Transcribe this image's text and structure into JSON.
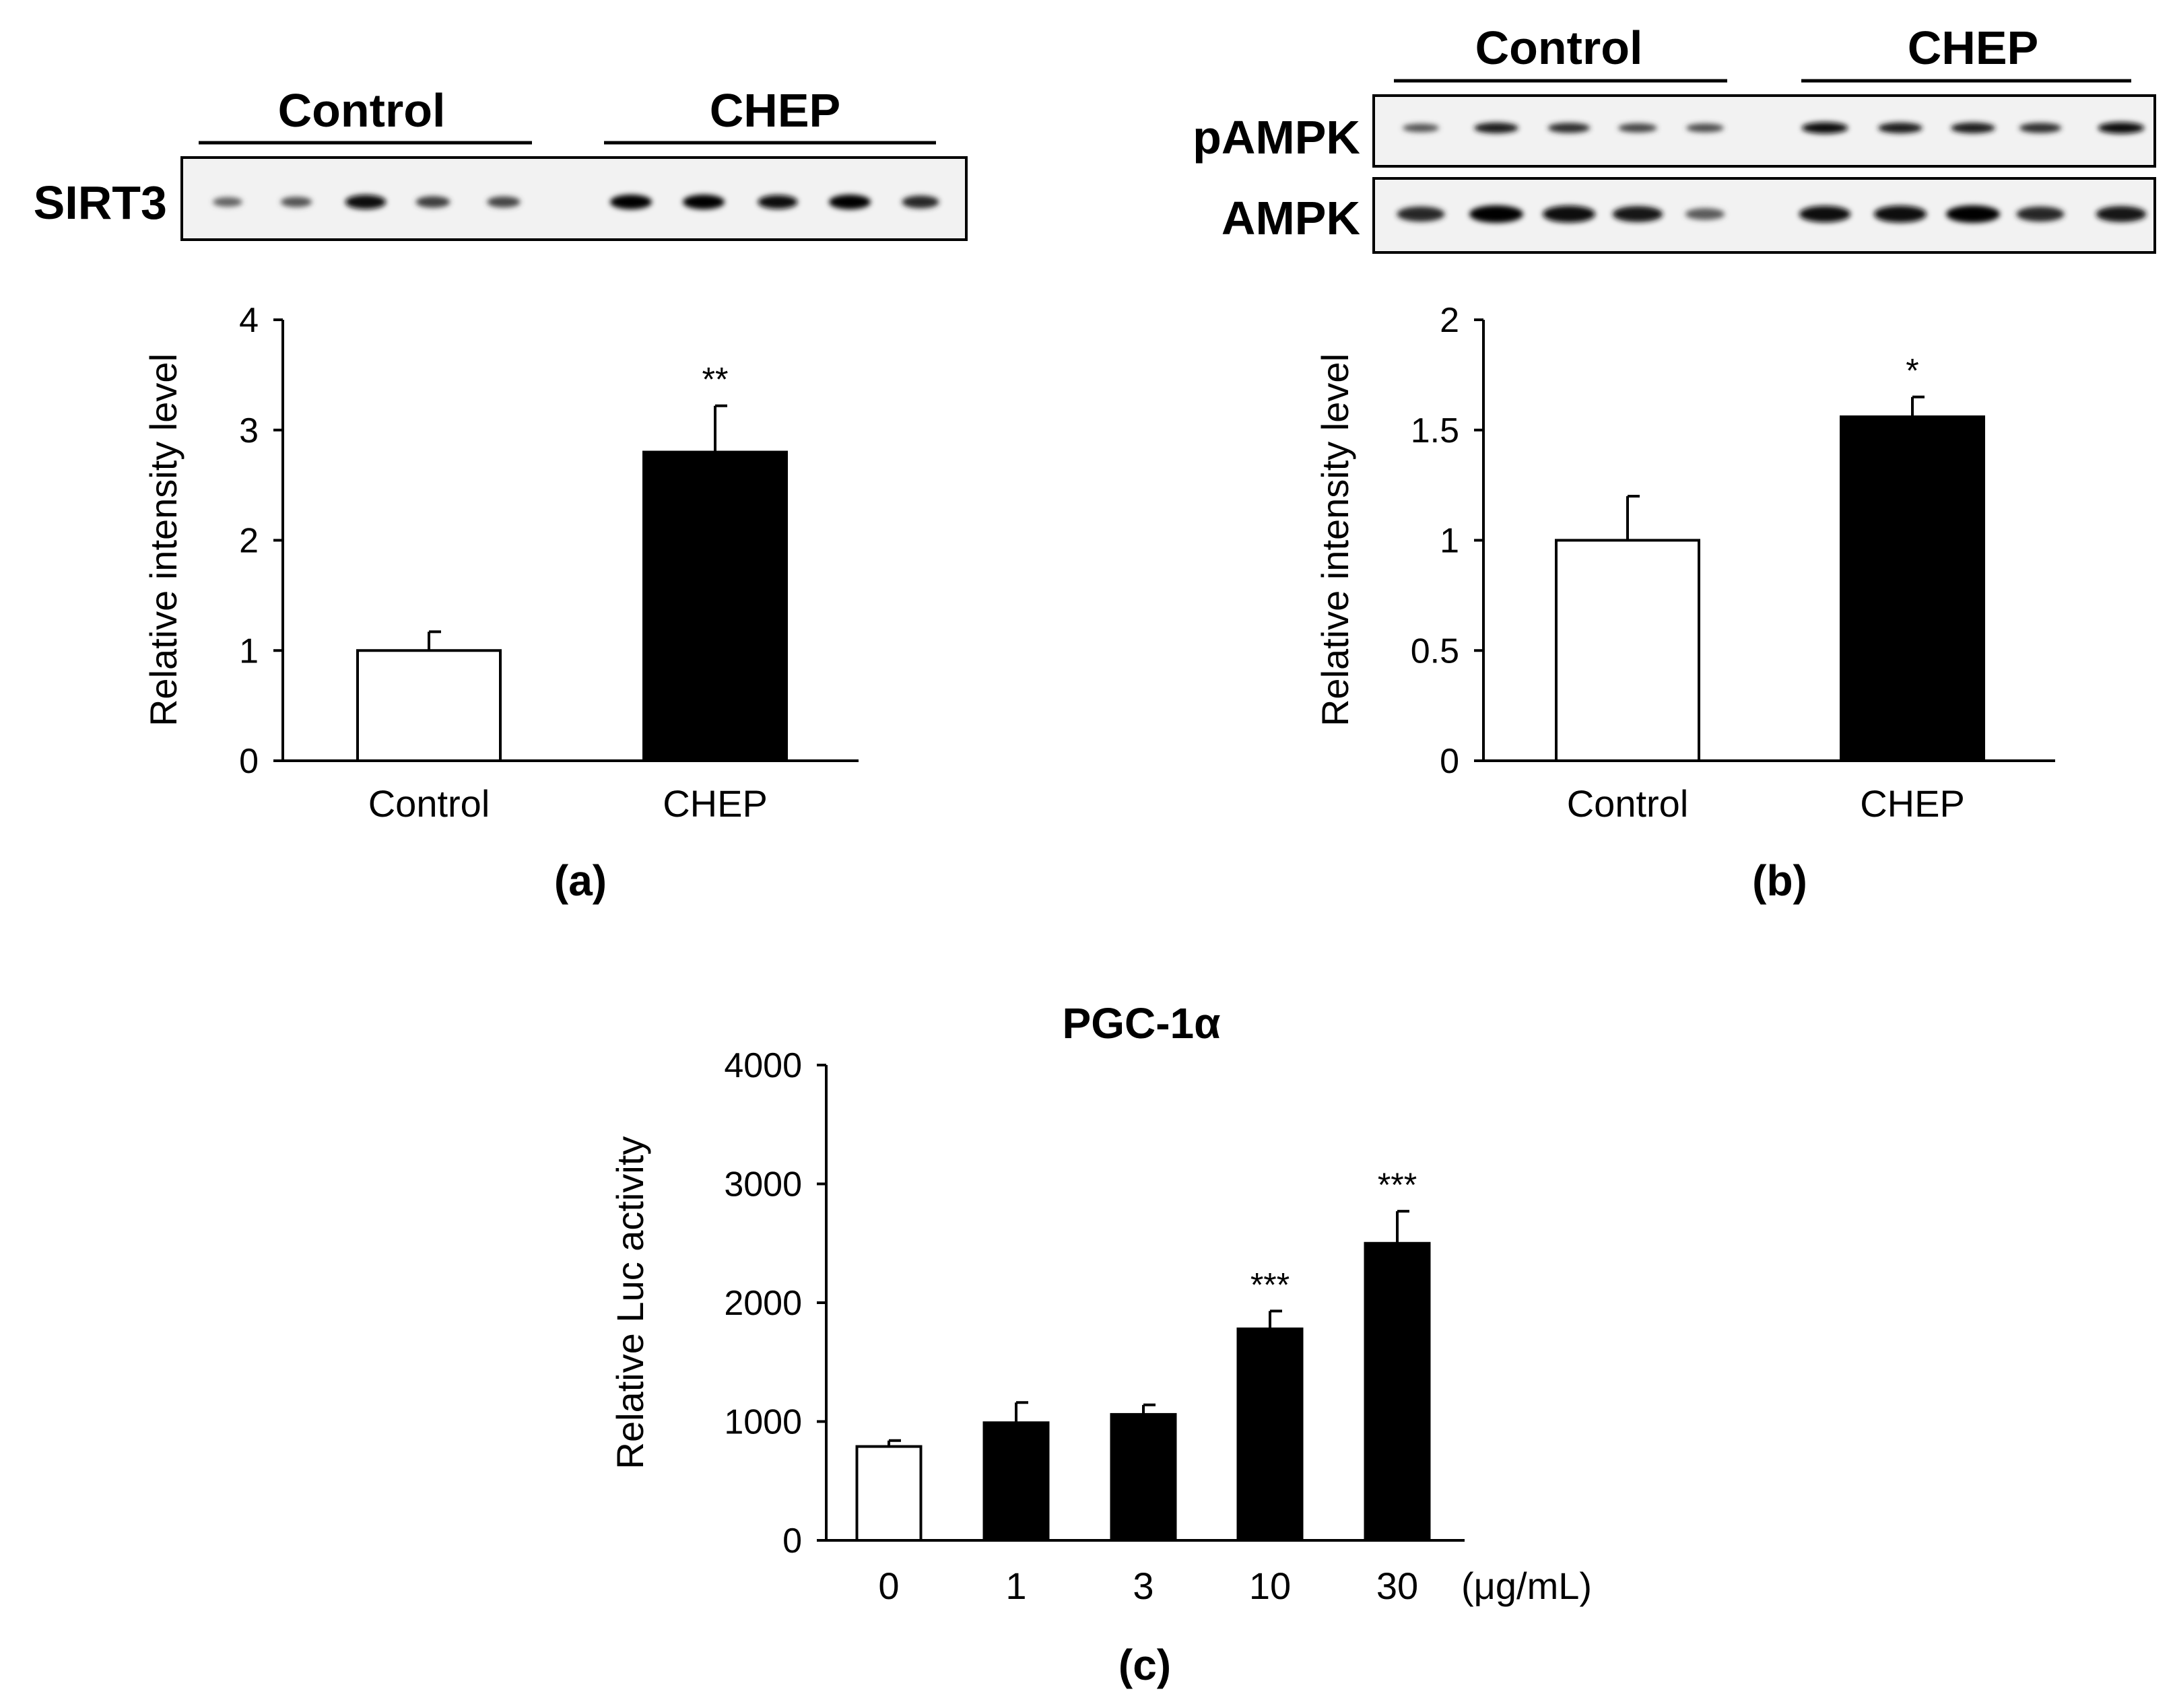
{
  "colors": {
    "ink": "#000000",
    "open_bar": "#ffffff",
    "filled_bar": "#000000",
    "blot_bg": "#f2f2f2"
  },
  "panels": [
    {
      "label": "(a)",
      "blot": {
        "group_labels": [
          "Control",
          "CHEP"
        ],
        "rows": [
          {
            "label": "SIRT3",
            "band_intensity": [
              0.35,
              0.45,
              0.95,
              0.6,
              0.55,
              1.0,
              1.0,
              0.9,
              1.0,
              0.75
            ]
          }
        ]
      }
    },
    {
      "label": "(b)",
      "blot": {
        "group_labels": [
          "Control",
          "CHEP"
        ],
        "rows": [
          {
            "label": "pAMPK",
            "band_intensity": [
              0.45,
              0.8,
              0.7,
              0.55,
              0.5,
              0.9,
              0.8,
              0.8,
              0.7,
              0.9
            ]
          },
          {
            "label": "AMPK",
            "band_intensity": [
              0.75,
              1.0,
              0.95,
              0.85,
              0.4,
              0.9,
              0.95,
              1.0,
              0.75,
              0.85
            ]
          }
        ]
      }
    },
    {
      "label": "(c)"
    }
  ],
  "chart_data": [
    {
      "type": "bar",
      "title": "",
      "categories": [
        "Control",
        "CHEP"
      ],
      "values": [
        1.0,
        2.8
      ],
      "errors": [
        0.17,
        0.42
      ],
      "significance": [
        "",
        "**"
      ],
      "bar_fill": [
        "open",
        "filled"
      ],
      "xlabel": "",
      "ylabel": "Relative intensity level",
      "ylim": [
        0,
        4
      ],
      "yticks": [
        "0",
        "1",
        "2",
        "3",
        "4"
      ],
      "grid": false
    },
    {
      "type": "bar",
      "title": "",
      "categories": [
        "Control",
        "CHEP"
      ],
      "values": [
        1.0,
        1.56
      ],
      "errors": [
        0.2,
        0.09
      ],
      "significance": [
        "",
        "*"
      ],
      "bar_fill": [
        "open",
        "filled"
      ],
      "xlabel": "",
      "ylabel": "Relative intensity level",
      "ylim": [
        0,
        2
      ],
      "yticks": [
        "0",
        "0.5",
        "1",
        "1.5",
        "2"
      ],
      "grid": false
    },
    {
      "type": "bar",
      "title": "PGC-1α",
      "categories": [
        "0",
        "1",
        "3",
        "10",
        "30"
      ],
      "x_unit": "(μg/mL)",
      "values": [
        790,
        990,
        1060,
        1780,
        2500
      ],
      "errors": [
        50,
        170,
        80,
        150,
        270
      ],
      "significance": [
        "",
        "",
        "",
        "***",
        "***"
      ],
      "bar_fill": [
        "open",
        "filled",
        "filled",
        "filled",
        "filled"
      ],
      "xlabel": "",
      "ylabel": "Relative Luc activity",
      "ylim": [
        0,
        4000
      ],
      "yticks": [
        "0",
        "1000",
        "2000",
        "3000",
        "4000"
      ],
      "grid": false
    }
  ]
}
